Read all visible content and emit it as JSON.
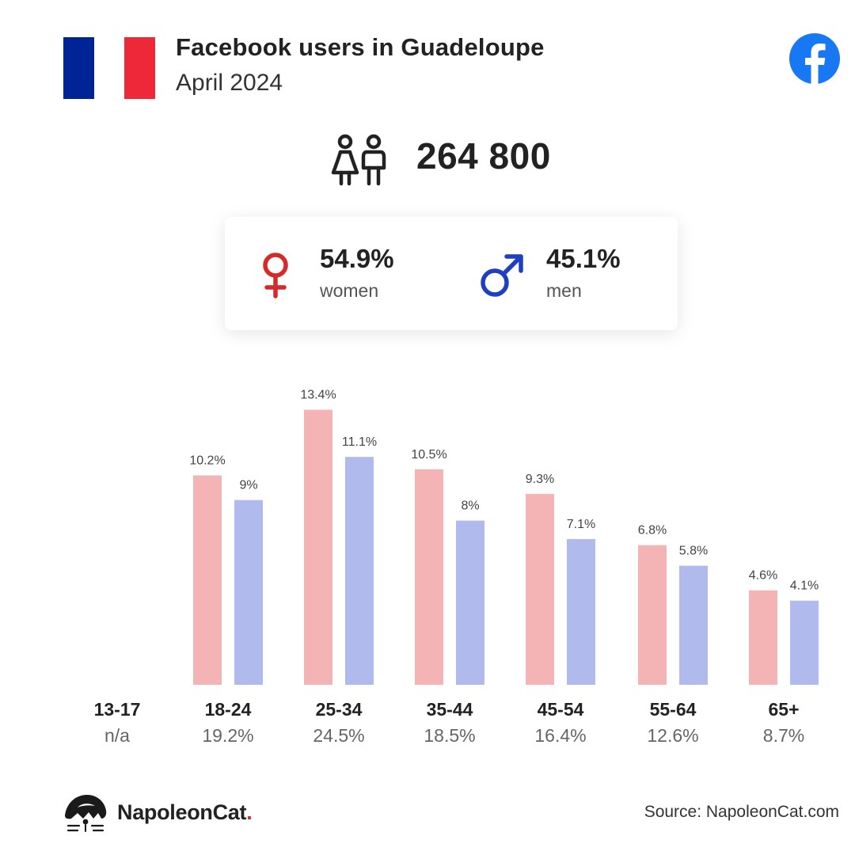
{
  "header": {
    "title": "Facebook users in Guadeloupe",
    "subtitle": "April 2024",
    "flag_colors": [
      "#002395",
      "#ffffff",
      "#ED2939"
    ],
    "logo_icon": "facebook-logo-icon",
    "logo_color": "#1877F2"
  },
  "total": {
    "icon": "users-icon",
    "value": "264 800"
  },
  "gender": {
    "women": {
      "icon": "female-symbol-icon",
      "percent": "54.9%",
      "label": "women",
      "color": "#D62A2A"
    },
    "men": {
      "icon": "male-symbol-icon",
      "percent": "45.1%",
      "label": "men",
      "color": "#1E3FBF"
    }
  },
  "chart_data": {
    "type": "bar",
    "categories": [
      "13-17",
      "18-24",
      "25-34",
      "35-44",
      "45-54",
      "55-64",
      "65+"
    ],
    "category_shares": [
      "n/a",
      "19.2%",
      "24.5%",
      "18.5%",
      "16.4%",
      "12.6%",
      "8.7%"
    ],
    "series": [
      {
        "values": [
          null,
          10.2,
          13.4,
          10.5,
          9.3,
          6.8,
          4.6
        ],
        "labels": [
          "",
          "10.2%",
          "13.4%",
          "10.5%",
          "9.3%",
          "6.8%",
          "4.6%"
        ],
        "color": "#F4B4B6"
      },
      {
        "values": [
          null,
          9,
          11.1,
          8,
          7.1,
          5.8,
          4.1
        ],
        "labels": [
          "",
          "9%",
          "11.1%",
          "8%",
          "7.1%",
          "5.8%",
          "4.1%"
        ],
        "color": "#B0BAEC"
      }
    ],
    "ylim": [
      0,
      14
    ],
    "grid": false,
    "legend": "none"
  },
  "footer": {
    "brand_name": "NapoleonCat",
    "brand_dot": ".",
    "brand_icon": "napoleoncat-logo-icon",
    "source": "Source: NapoleonCat.com"
  }
}
